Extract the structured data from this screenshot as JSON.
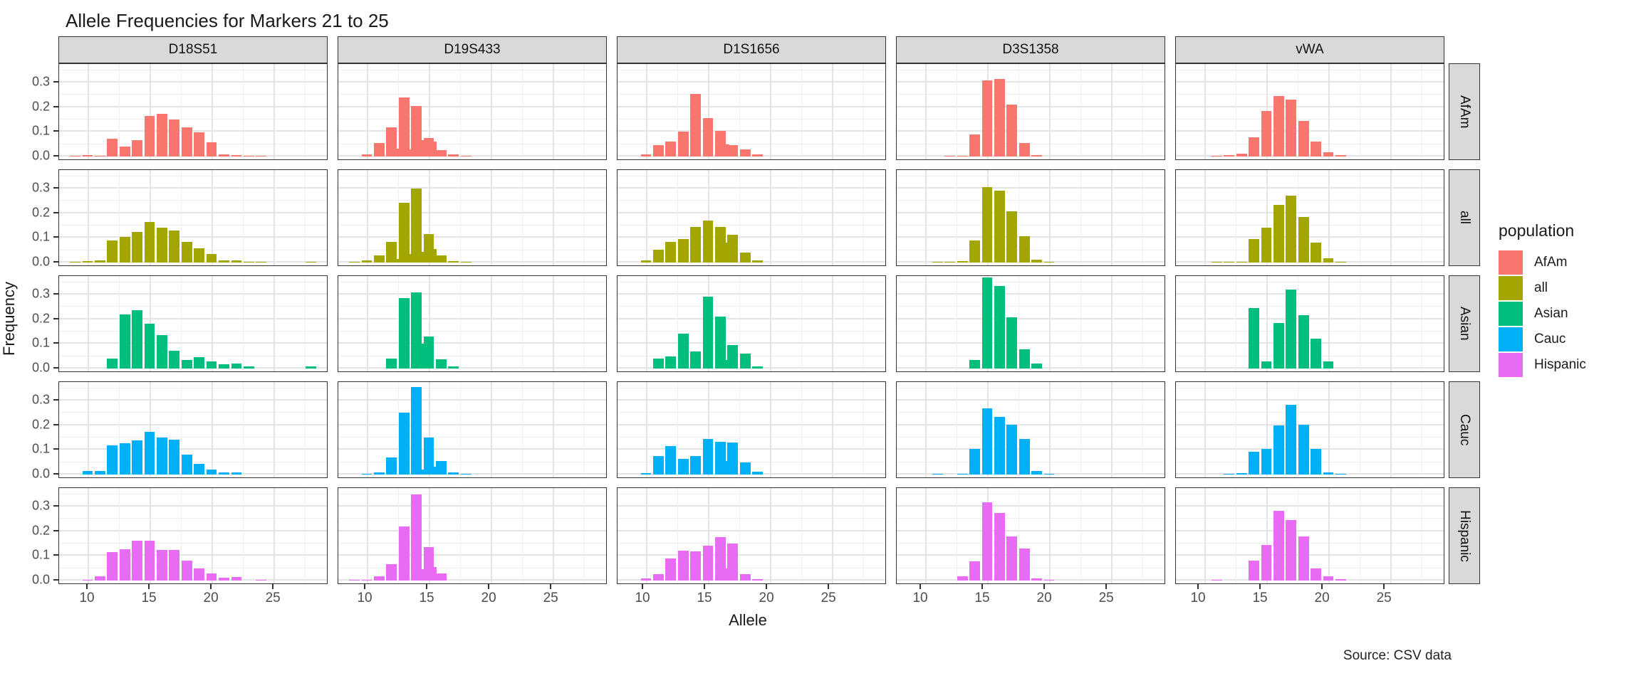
{
  "title": "Allele Frequencies for Markers 21 to 25",
  "caption": "Source: CSV data",
  "axes": {
    "x_label": "Allele",
    "y_label": "Frequency",
    "x_ticks": [
      10,
      15,
      20,
      25
    ],
    "y_tick_labels": [
      "0.0",
      "0.1",
      "0.2",
      "0.3"
    ]
  },
  "legend": {
    "title": "population",
    "items": [
      {
        "label": "AfAm",
        "color": "#F8766D"
      },
      {
        "label": "all",
        "color": "#A3A500"
      },
      {
        "label": "Asian",
        "color": "#00BF7D"
      },
      {
        "label": "Cauc",
        "color": "#00B0F6"
      },
      {
        "label": "Hispanic",
        "color": "#E76BF3"
      }
    ]
  },
  "chart_data": {
    "type": "bar",
    "title": "Allele Frequencies for Markers 21 to 25",
    "xlabel": "Allele",
    "ylabel": "Frequency",
    "facet_columns": [
      "D18S51",
      "D19S433",
      "D1S1656",
      "D3S1358",
      "vWA"
    ],
    "facet_rows": [
      "AfAm",
      "all",
      "Asian",
      "Cauc",
      "Hispanic"
    ],
    "series_colors": {
      "AfAm": "#F8766D",
      "all": "#A3A500",
      "Asian": "#00BF7D",
      "Cauc": "#00B0F6",
      "Hispanic": "#E76BF3"
    },
    "x_ticks": [
      10,
      15,
      20,
      25
    ],
    "y_ticks": [
      0.0,
      0.1,
      0.2,
      0.3
    ],
    "x_range": [
      7.7,
      29.3
    ],
    "y_range": [
      0,
      0.375
    ],
    "grid": true,
    "legend_position": "right",
    "panels": [
      {
        "marker": "D18S51",
        "population": "AfAm",
        "alleles": [
          9,
          10,
          11,
          12,
          13,
          14,
          15,
          16,
          17,
          18,
          19,
          20,
          21,
          22,
          23,
          24
        ],
        "frequencies": [
          0.003,
          0.005,
          0.004,
          0.072,
          0.04,
          0.067,
          0.164,
          0.172,
          0.149,
          0.119,
          0.097,
          0.057,
          0.009,
          0.007,
          0.004,
          0.004
        ]
      },
      {
        "marker": "D19S433",
        "population": "AfAm",
        "alleles": [
          10,
          11,
          12,
          12.2,
          13,
          13.2,
          14,
          14.2,
          15,
          15.2,
          16,
          17,
          18
        ],
        "frequencies": [
          0.01,
          0.056,
          0.117,
          0.032,
          0.24,
          0.03,
          0.206,
          0.066,
          0.076,
          0.062,
          0.027,
          0.008,
          0.004
        ]
      },
      {
        "marker": "D1S1656",
        "population": "AfAm",
        "alleles": [
          10,
          11,
          12,
          13,
          14,
          15,
          16,
          16.3,
          17,
          18,
          19
        ],
        "frequencies": [
          0.01,
          0.045,
          0.062,
          0.1,
          0.255,
          0.155,
          0.105,
          0.05,
          0.045,
          0.03,
          0.008
        ]
      },
      {
        "marker": "D3S1358",
        "population": "AfAm",
        "alleles": [
          12,
          13,
          14,
          15,
          16,
          17,
          18,
          19
        ],
        "frequencies": [
          0.004,
          0.004,
          0.088,
          0.31,
          0.315,
          0.21,
          0.056,
          0.006
        ]
      },
      {
        "marker": "vWA",
        "population": "AfAm",
        "alleles": [
          11,
          12,
          13,
          14,
          15,
          16,
          17,
          18,
          19,
          20,
          21
        ],
        "frequencies": [
          0.004,
          0.005,
          0.012,
          0.079,
          0.184,
          0.245,
          0.232,
          0.145,
          0.061,
          0.016,
          0.005
        ]
      },
      {
        "marker": "D18S51",
        "population": "all",
        "alleles": [
          9,
          10,
          11,
          12,
          13,
          14,
          15,
          16,
          17,
          18,
          19,
          20,
          21,
          22,
          23,
          24,
          28
        ],
        "frequencies": [
          0.003,
          0.005,
          0.008,
          0.09,
          0.103,
          0.125,
          0.165,
          0.142,
          0.13,
          0.084,
          0.059,
          0.034,
          0.008,
          0.01,
          0.003,
          0.002,
          0.003
        ]
      },
      {
        "marker": "D19S433",
        "population": "all",
        "alleles": [
          9,
          10,
          11,
          12,
          12.2,
          13,
          13.2,
          14,
          14.2,
          15,
          15.2,
          16,
          17,
          18
        ],
        "frequencies": [
          0.002,
          0.008,
          0.03,
          0.083,
          0.013,
          0.242,
          0.036,
          0.3,
          0.044,
          0.115,
          0.056,
          0.03,
          0.006,
          0.003
        ]
      },
      {
        "marker": "D1S1656",
        "population": "all",
        "alleles": [
          10,
          11,
          12,
          13,
          14,
          15,
          16,
          16.3,
          17,
          18,
          19
        ],
        "frequencies": [
          0.008,
          0.052,
          0.085,
          0.094,
          0.145,
          0.17,
          0.145,
          0.082,
          0.112,
          0.04,
          0.008
        ]
      },
      {
        "marker": "D3S1358",
        "population": "all",
        "alleles": [
          11,
          12,
          13,
          14,
          15,
          16,
          17,
          18,
          19,
          20
        ],
        "frequencies": [
          0.002,
          0.003,
          0.005,
          0.09,
          0.305,
          0.29,
          0.207,
          0.107,
          0.012,
          0.003
        ]
      },
      {
        "marker": "vWA",
        "population": "all",
        "alleles": [
          11,
          12,
          13,
          14,
          15,
          16,
          17,
          18,
          19,
          20,
          21
        ],
        "frequencies": [
          0.002,
          0.002,
          0.004,
          0.095,
          0.14,
          0.235,
          0.27,
          0.185,
          0.08,
          0.018,
          0.003
        ]
      },
      {
        "marker": "D18S51",
        "population": "Asian",
        "alleles": [
          12,
          13,
          14,
          15,
          16,
          17,
          18,
          19,
          20,
          21,
          22,
          23,
          28
        ],
        "frequencies": [
          0.039,
          0.219,
          0.238,
          0.182,
          0.135,
          0.072,
          0.035,
          0.045,
          0.029,
          0.016,
          0.021,
          0.008,
          0.01
        ]
      },
      {
        "marker": "D19S433",
        "population": "Asian",
        "alleles": [
          12,
          13,
          14,
          14.2,
          15,
          16,
          17
        ],
        "frequencies": [
          0.039,
          0.285,
          0.31,
          0.1,
          0.13,
          0.037,
          0.008
        ]
      },
      {
        "marker": "D1S1656",
        "population": "Asian",
        "alleles": [
          11,
          12,
          13,
          14,
          15,
          16,
          16.3,
          17,
          18,
          19
        ],
        "frequencies": [
          0.04,
          0.05,
          0.14,
          0.068,
          0.29,
          0.21,
          0.035,
          0.095,
          0.06,
          0.01
        ]
      },
      {
        "marker": "D3S1358",
        "population": "Asian",
        "alleles": [
          14,
          15,
          16,
          17,
          18,
          19
        ],
        "frequencies": [
          0.035,
          0.37,
          0.335,
          0.207,
          0.079,
          0.019
        ]
      },
      {
        "marker": "vWA",
        "population": "Asian",
        "alleles": [
          14,
          15,
          16,
          17,
          18,
          19,
          20
        ],
        "frequencies": [
          0.245,
          0.03,
          0.185,
          0.32,
          0.215,
          0.12,
          0.028
        ]
      },
      {
        "marker": "D18S51",
        "population": "Cauc",
        "alleles": [
          10,
          11,
          12,
          13,
          14,
          15,
          16,
          17,
          18,
          19,
          20,
          21,
          22
        ],
        "frequencies": [
          0.013,
          0.013,
          0.117,
          0.127,
          0.138,
          0.174,
          0.149,
          0.141,
          0.08,
          0.043,
          0.021,
          0.01,
          0.008
        ]
      },
      {
        "marker": "D19S433",
        "population": "Cauc",
        "alleles": [
          10,
          11,
          12,
          13,
          14,
          14.2,
          15,
          15.2,
          16,
          17,
          18
        ],
        "frequencies": [
          0.004,
          0.008,
          0.07,
          0.25,
          0.355,
          0.02,
          0.15,
          0.033,
          0.056,
          0.008,
          0.003
        ]
      },
      {
        "marker": "D1S1656",
        "population": "Cauc",
        "alleles": [
          10,
          11,
          12,
          13,
          14,
          15,
          16,
          16.3,
          17,
          18,
          19
        ],
        "frequencies": [
          0.005,
          0.075,
          0.115,
          0.063,
          0.075,
          0.145,
          0.133,
          0.055,
          0.13,
          0.048,
          0.012
        ]
      },
      {
        "marker": "D3S1358",
        "population": "Cauc",
        "alleles": [
          11,
          13,
          14,
          15,
          16,
          17,
          18,
          19,
          20
        ],
        "frequencies": [
          0.002,
          0.003,
          0.105,
          0.268,
          0.234,
          0.202,
          0.143,
          0.015,
          0.003
        ]
      },
      {
        "marker": "vWA",
        "population": "Cauc",
        "alleles": [
          12,
          13,
          14,
          15,
          16,
          17,
          18,
          19,
          20,
          21
        ],
        "frequencies": [
          0.004,
          0.005,
          0.091,
          0.103,
          0.199,
          0.282,
          0.201,
          0.103,
          0.01,
          0.004
        ]
      },
      {
        "marker": "D18S51",
        "population": "Hispanic",
        "alleles": [
          10,
          11,
          12,
          13,
          14,
          15,
          16,
          17,
          18,
          19,
          20,
          21,
          22,
          24
        ],
        "frequencies": [
          0.004,
          0.018,
          0.115,
          0.127,
          0.162,
          0.162,
          0.125,
          0.125,
          0.081,
          0.049,
          0.029,
          0.012,
          0.015,
          0.004
        ]
      },
      {
        "marker": "D19S433",
        "population": "Hispanic",
        "alleles": [
          9,
          10,
          11,
          12,
          13,
          14,
          14.2,
          15,
          15.2,
          16
        ],
        "frequencies": [
          0.003,
          0.003,
          0.018,
          0.065,
          0.22,
          0.35,
          0.045,
          0.135,
          0.055,
          0.03
        ]
      },
      {
        "marker": "D1S1656",
        "population": "Hispanic",
        "alleles": [
          10,
          11,
          12,
          13,
          14,
          15,
          16,
          16.3,
          17,
          18,
          19
        ],
        "frequencies": [
          0.01,
          0.027,
          0.09,
          0.12,
          0.117,
          0.142,
          0.175,
          0.048,
          0.15,
          0.027,
          0.005
        ]
      },
      {
        "marker": "D3S1358",
        "population": "Hispanic",
        "alleles": [
          13,
          14,
          15,
          16,
          17,
          18,
          19,
          20
        ],
        "frequencies": [
          0.018,
          0.077,
          0.318,
          0.273,
          0.18,
          0.13,
          0.008,
          0.004
        ]
      },
      {
        "marker": "vWA",
        "population": "Hispanic",
        "alleles": [
          11,
          14,
          15,
          16,
          17,
          18,
          19,
          20,
          21
        ],
        "frequencies": [
          0.004,
          0.081,
          0.145,
          0.284,
          0.245,
          0.18,
          0.049,
          0.016,
          0.006
        ]
      }
    ]
  }
}
